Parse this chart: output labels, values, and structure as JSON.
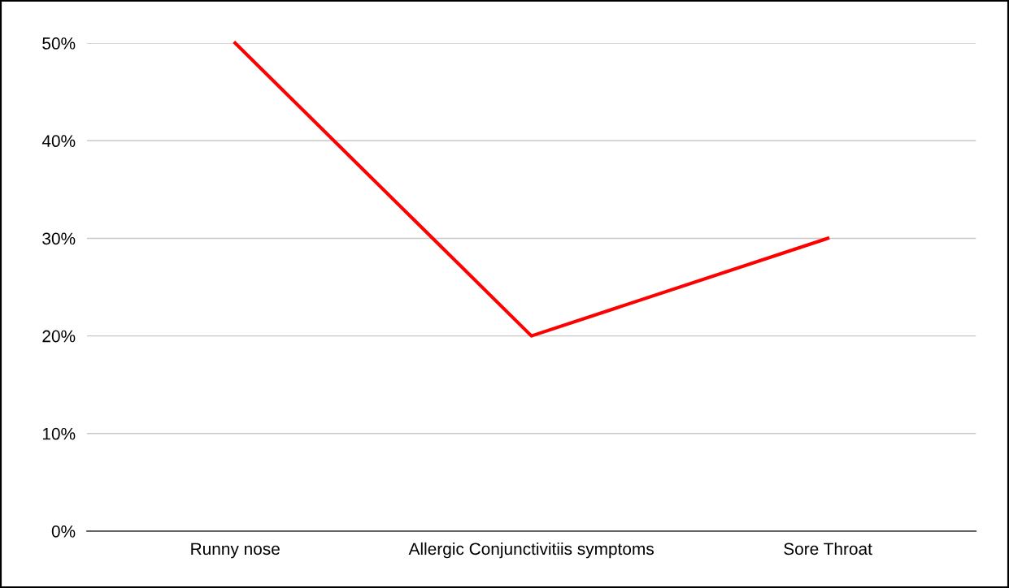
{
  "chart_data": {
    "type": "line",
    "categories": [
      "Runny nose",
      "Allergic Conjunctivitiis symptoms",
      "Sore Throat"
    ],
    "series": [
      {
        "color": "#ff0000",
        "values": [
          50,
          20,
          30
        ]
      }
    ],
    "ylim": [
      0,
      50
    ],
    "yticks": [
      {
        "value": 0,
        "label": "0%"
      },
      {
        "value": 10,
        "label": "10%"
      },
      {
        "value": 20,
        "label": "20%"
      },
      {
        "value": 30,
        "label": "30%"
      },
      {
        "value": 40,
        "label": "40%"
      },
      {
        "value": 50,
        "label": "50%"
      }
    ],
    "grid": "y",
    "marker": "none",
    "line_style": "solid"
  }
}
